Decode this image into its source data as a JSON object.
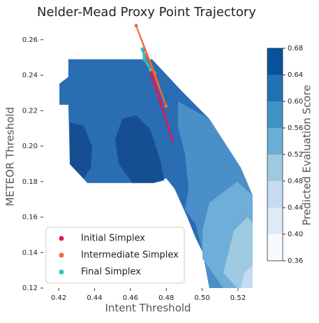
{
  "chart_data": {
    "type": "contour",
    "title": "Nelder-Mead Proxy Point Trajectory",
    "x_label": "Intent Threshold",
    "y_label": "METEOR Threshold",
    "xlim": [
      0.4114,
      0.5282
    ],
    "ylim": [
      0.12,
      0.2686
    ],
    "xticks": [
      0.42,
      0.44,
      0.46,
      0.48,
      {
        "value": 0.5,
        "label": "0.50"
      },
      0.52
    ],
    "yticks": [
      0.12,
      0.14,
      0.16,
      0.18,
      {
        "value": 0.2,
        "label": "0.20"
      },
      0.22,
      0.24,
      0.26
    ],
    "colorbar": {
      "label": "Predicted Evaluation Score",
      "levels": [
        0.36,
        0.4,
        0.44,
        0.48,
        0.52,
        0.56,
        0.6,
        0.64,
        0.68
      ],
      "colors": [
        "#f7fbff",
        "#deebf7",
        "#c6dbef",
        "#9ecae1",
        "#6baed6",
        "#4292c6",
        "#2171b5",
        "#08519c"
      ],
      "ticks": [
        0.36,
        {
          "value": 0.4,
          "label": "0.40"
        },
        0.44,
        0.48,
        0.52,
        0.56,
        {
          "value": 0.6,
          "label": "0.60"
        },
        0.64,
        0.68
      ]
    },
    "contours": [
      {
        "level": 0.6,
        "color": "#2a6db3",
        "points": [
          [
            0.4254,
            0.249
          ],
          [
            0.4721,
            0.249
          ],
          [
            0.4885,
            0.2312
          ],
          [
            0.504,
            0.2154
          ],
          [
            0.5216,
            0.1878
          ],
          [
            0.5282,
            0.1721
          ],
          [
            0.5282,
            0.12
          ],
          [
            0.5177,
            0.12
          ],
          [
            0.504,
            0.1326
          ],
          [
            0.4963,
            0.1484
          ],
          [
            0.4916,
            0.1602
          ],
          [
            0.4846,
            0.176
          ],
          [
            0.4799,
            0.1819
          ],
          [
            0.4729,
            0.1792
          ],
          [
            0.4612,
            0.1792
          ],
          [
            0.4457,
            0.1792
          ],
          [
            0.436,
            0.1792
          ],
          [
            0.4262,
            0.1898
          ],
          [
            0.4254,
            0.2233
          ],
          [
            0.4204,
            0.2233
          ],
          [
            0.4204,
            0.2352
          ],
          [
            0.4254,
            0.2391
          ]
        ]
      },
      {
        "level": 0.56,
        "color": "#4a8fc8",
        "points": [
          [
            0.4865,
            0.2253
          ],
          [
            0.504,
            0.2154
          ],
          [
            0.5216,
            0.1878
          ],
          [
            0.5282,
            0.1721
          ],
          [
            0.5282,
            0.12
          ],
          [
            0.504,
            0.12
          ],
          [
            0.5002,
            0.1405
          ],
          [
            0.4963,
            0.1563
          ],
          [
            0.4904,
            0.1642
          ],
          [
            0.4924,
            0.176
          ],
          [
            0.4904,
            0.1957
          ],
          [
            0.4865,
            0.2115
          ]
        ]
      },
      {
        "level": 0.52,
        "color": "#6eaed8",
        "points": [
          [
            0.504,
            0.1681
          ],
          [
            0.5196,
            0.18
          ],
          [
            0.5282,
            0.1721
          ],
          [
            0.5282,
            0.12
          ],
          [
            0.5118,
            0.12
          ],
          [
            0.5002,
            0.1366
          ],
          [
            0.5002,
            0.1523
          ]
        ]
      },
      {
        "level": 0.48,
        "color": "#9ecae1",
        "points": [
          [
            0.5177,
            0.1523
          ],
          [
            0.5254,
            0.1602
          ],
          [
            0.5282,
            0.1563
          ],
          [
            0.5282,
            0.12
          ],
          [
            0.5196,
            0.12
          ],
          [
            0.5118,
            0.1287
          ]
        ]
      },
      {
        "level": 0.44,
        "color": "#c6dbef",
        "points": [
          [
            0.5235,
            0.1287
          ],
          [
            0.5282,
            0.1326
          ],
          [
            0.5282,
            0.12
          ],
          [
            0.5216,
            0.12
          ]
        ]
      },
      {
        "level": 0.64,
        "color": "#154f92",
        "points": [
          [
            0.4262,
            0.2135
          ],
          [
            0.434,
            0.2115
          ],
          [
            0.4387,
            0.1997
          ],
          [
            0.4379,
            0.1878
          ],
          [
            0.434,
            0.1819
          ],
          [
            0.4262,
            0.1898
          ]
        ]
      },
      {
        "level": 0.64,
        "color": "#154f92",
        "points": [
          [
            0.4554,
            0.2154
          ],
          [
            0.4632,
            0.2174
          ],
          [
            0.471,
            0.2095
          ],
          [
            0.4768,
            0.1918
          ],
          [
            0.4788,
            0.1807
          ],
          [
            0.4729,
            0.1792
          ],
          [
            0.4612,
            0.1792
          ],
          [
            0.4535,
            0.1898
          ],
          [
            0.4515,
            0.2036
          ]
        ]
      }
    ],
    "series": [
      {
        "name": "Initial Simplex",
        "color": "#d81b60",
        "x": [
          0.467,
          0.4705,
          0.4834
        ],
        "y": [
          0.254,
          0.247,
          0.2036
        ]
      },
      {
        "name": "Intermediate Simplex",
        "color": "#f26b2a",
        "x": [
          0.4632,
          0.4799,
          0.4735
        ],
        "y": [
          0.2679,
          0.2225,
          0.2412
        ]
      },
      {
        "name": "Final Simplex",
        "color": "#26c6c6",
        "x": [
          0.4667,
          0.4675,
          0.4711
        ],
        "y": [
          0.2548,
          0.2489,
          0.2431
        ]
      }
    ]
  }
}
